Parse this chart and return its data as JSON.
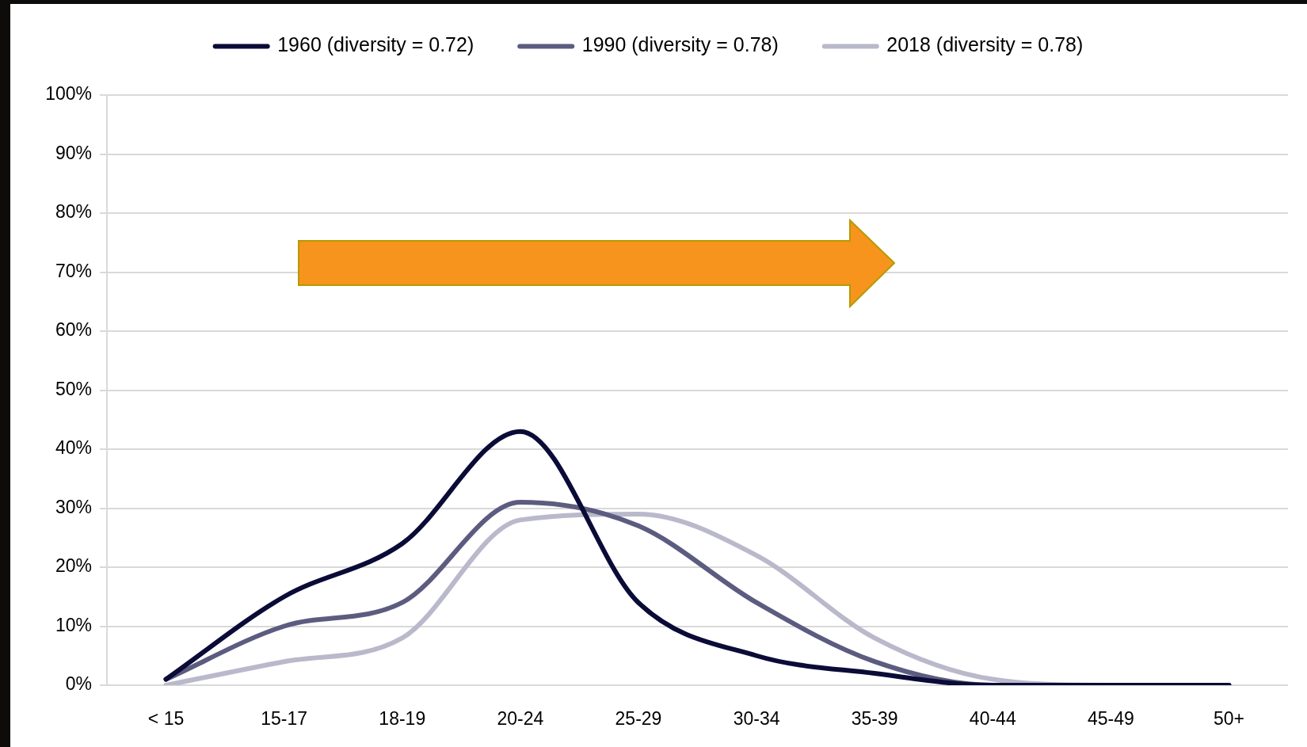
{
  "chart_data": {
    "type": "line",
    "categories": [
      "< 15",
      "15-17",
      "18-19",
      "20-24",
      "25-29",
      "30-34",
      "35-39",
      "40-44",
      "45-49",
      "50+"
    ],
    "series": [
      {
        "name": "1960 (diversity = 0.72)",
        "color": "#0b0b38",
        "values": [
          1,
          15,
          24,
          43,
          14,
          5,
          2,
          0,
          0,
          0
        ]
      },
      {
        "name": "1990 (diversity = 0.78)",
        "color": "#5c5c80",
        "values": [
          1,
          10,
          14,
          31,
          27,
          14,
          4,
          0,
          0,
          0
        ]
      },
      {
        "name": "2018 (diversity = 0.78)",
        "color": "#b9b9cb",
        "values": [
          0,
          4,
          8,
          28,
          29,
          22,
          8,
          1,
          0,
          0
        ]
      }
    ],
    "ylim": [
      0,
      100
    ],
    "yticks": [
      {
        "value": 0,
        "label": "0%"
      },
      {
        "value": 10,
        "label": "10%"
      },
      {
        "value": 20,
        "label": "20%"
      },
      {
        "value": 30,
        "label": "30%"
      },
      {
        "value": 40,
        "label": "40%"
      },
      {
        "value": 50,
        "label": "50%"
      },
      {
        "value": 60,
        "label": "60%"
      },
      {
        "value": 70,
        "label": "70%"
      },
      {
        "value": 80,
        "label": "80%"
      },
      {
        "value": 90,
        "label": "90%"
      },
      {
        "value": 100,
        "label": "100%"
      }
    ],
    "grid": "y",
    "legend": "top",
    "marker": "none",
    "line_style": "solid"
  }
}
